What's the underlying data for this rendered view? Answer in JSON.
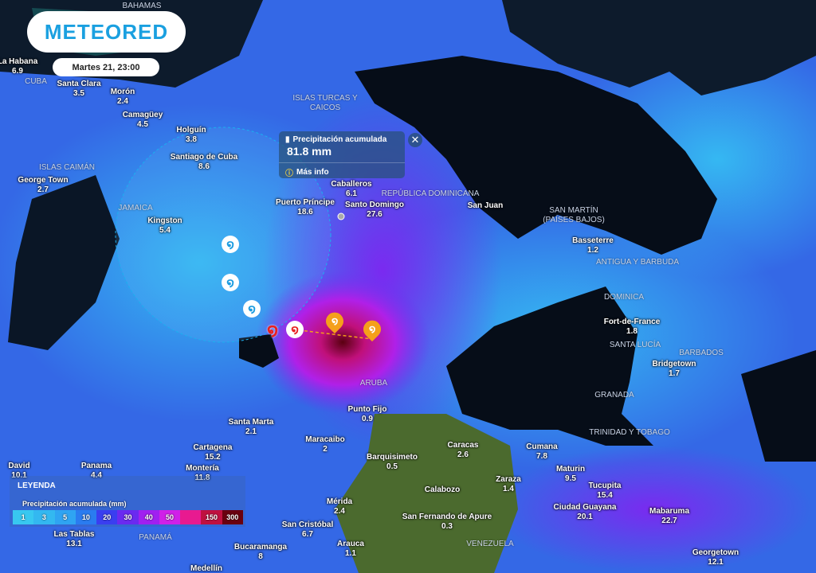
{
  "brand": {
    "logo": "METEORED"
  },
  "datetime": "Martes 21, 23:00",
  "popup": {
    "title": "Precipitación acumulada",
    "value": "81.8 mm",
    "more": "Más info",
    "icon": "rain-gauge-icon",
    "close": "✕"
  },
  "legend": {
    "title": "LEYENDA",
    "subtitle": "Precipitación acumulada (mm)",
    "stops": [
      {
        "label": "1",
        "color": "#38c8f0"
      },
      {
        "label": "3",
        "color": "#33b8f0"
      },
      {
        "label": "5",
        "color": "#2fa4f2"
      },
      {
        "label": "10",
        "color": "#2a7cf0"
      },
      {
        "label": "20",
        "color": "#3a3ef0"
      },
      {
        "label": "30",
        "color": "#6a2af0"
      },
      {
        "label": "40",
        "color": "#a020f0"
      },
      {
        "label": "50",
        "color": "#d020e8"
      },
      {
        "label": "",
        "color": "#e81a90"
      },
      {
        "label": "150",
        "color": "#c01040"
      },
      {
        "label": "300",
        "color": "#6a0010"
      }
    ]
  },
  "cities": [
    {
      "name": "La Habana",
      "value": "6.9"
    },
    {
      "name": "Santa Clara",
      "value": "3.5"
    },
    {
      "name": "Morón",
      "value": "2.4"
    },
    {
      "name": "Camagüey",
      "value": "4.5"
    },
    {
      "name": "Holguín",
      "value": "3.8"
    },
    {
      "name": "Santiago de Cuba",
      "value": "8.6"
    },
    {
      "name": "George Town",
      "value": "2.7"
    },
    {
      "name": "Kingston",
      "value": "5.4"
    },
    {
      "name": "Puerto Príncipe",
      "value": "18.6"
    },
    {
      "name": "Santo Domingo",
      "value": "27.6"
    },
    {
      "name": "Caballeros",
      "value": "6.1"
    },
    {
      "name": "San Juan",
      "value": ""
    },
    {
      "name": "Basseterre",
      "value": "1.2"
    },
    {
      "name": "Fort-de-France",
      "value": "1.8"
    },
    {
      "name": "Bridgetown",
      "value": "1.7"
    },
    {
      "name": "Punto Fijo",
      "value": "0.9"
    },
    {
      "name": "Santa Marta",
      "value": "2.1"
    },
    {
      "name": "Cartagena",
      "value": "15.2"
    },
    {
      "name": "Maracaibo",
      "value": "2"
    },
    {
      "name": "Barquisimeto",
      "value": "0.5"
    },
    {
      "name": "Caracas",
      "value": "2.6"
    },
    {
      "name": "Cumana",
      "value": "7.8"
    },
    {
      "name": "Maturin",
      "value": "9.5"
    },
    {
      "name": "Zaraza",
      "value": "1.4"
    },
    {
      "name": "Calabozo",
      "value": ""
    },
    {
      "name": "Tucupita",
      "value": "15.4"
    },
    {
      "name": "Mérida",
      "value": "2.4"
    },
    {
      "name": "Ciudad Guayana",
      "value": "20.1"
    },
    {
      "name": "Mabaruma",
      "value": "22.7"
    },
    {
      "name": "San Fernando de Apure",
      "value": "0.3"
    },
    {
      "name": "San Cristóbal",
      "value": "6.7"
    },
    {
      "name": "Panama",
      "value": "4.4"
    },
    {
      "name": "Montería",
      "value": "11.8"
    },
    {
      "name": "David",
      "value": "10.1"
    },
    {
      "name": "Las Tablas",
      "value": "13.1"
    },
    {
      "name": "Bucaramanga",
      "value": "8"
    },
    {
      "name": "Arauca",
      "value": "1.1"
    },
    {
      "name": "Medellín",
      "value": ""
    },
    {
      "name": "Georgetown",
      "value": "12.1"
    }
  ],
  "countries": [
    "BAHAMAS",
    "ISLAS TURCAS Y CAICOS",
    "ISLAS CAIMÁN",
    "JAMAICA",
    "REPÚBLICA DOMINICANA",
    "SAN MARTÍN (PAÍSES BAJOS)",
    "ANTIGUA Y BARBUDA",
    "DOMINICA",
    "SANTA LUCÍA",
    "BARBADOS",
    "GRANADA",
    "TRINIDAD Y TOBAGO",
    "ARUBA",
    "PANAMÁ",
    "VENEZUELA",
    "CUBA"
  ],
  "storm_track": {
    "past_color": "#1a9be0",
    "current_color": "#e82020",
    "forecast_color": "#f5a01a",
    "icon": "hurricane-icon"
  }
}
